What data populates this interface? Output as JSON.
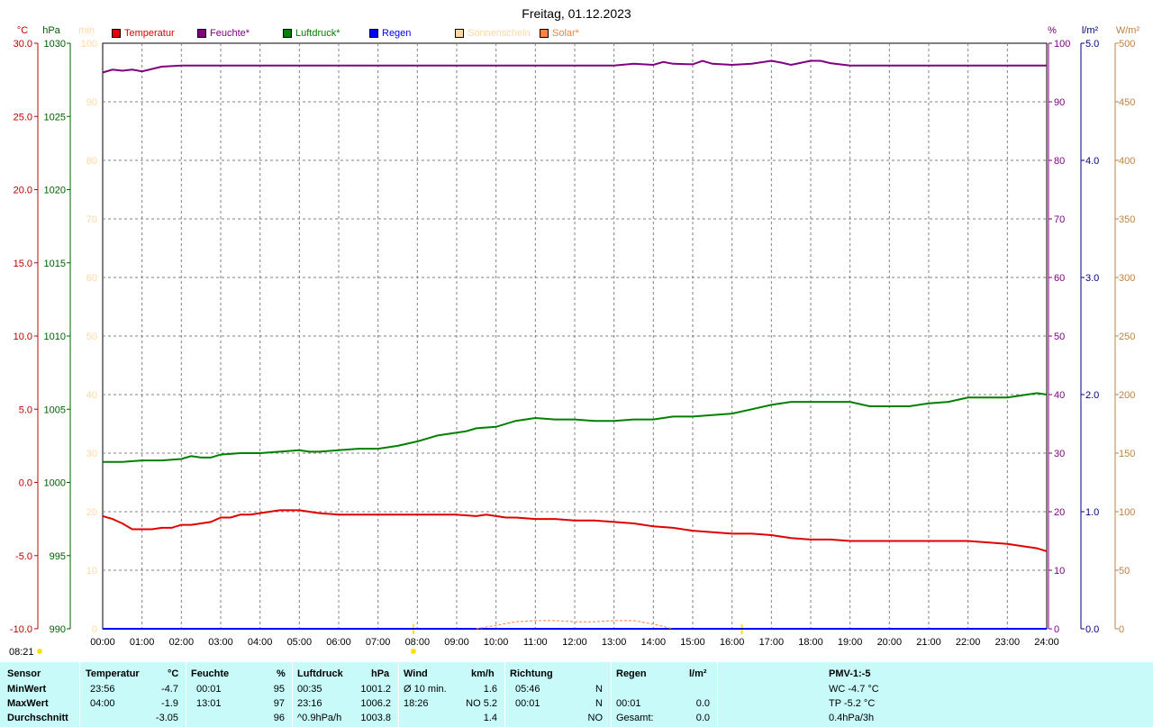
{
  "title": "Freitag, 01.12.2023",
  "axis_units": {
    "temp": "°C",
    "pressure": "hPa",
    "sunshine": "min",
    "humidity": "%",
    "rain": "l/m²",
    "solar": "W/m²"
  },
  "axis_ticks": {
    "temp": [
      "30.0",
      "25.0",
      "20.0",
      "15.0",
      "10.0",
      "5.0",
      "0.0",
      "-5.0",
      "-10.0"
    ],
    "pressure": [
      "1030",
      "1025",
      "1020",
      "1015",
      "1010",
      "1005",
      "1000",
      "995",
      "990"
    ],
    "sunshine": [
      "100",
      "90",
      "80",
      "70",
      "60",
      "50",
      "40",
      "30",
      "20",
      "10",
      "0"
    ],
    "humidity": [
      "100",
      "90",
      "80",
      "70",
      "60",
      "50",
      "40",
      "30",
      "20",
      "10",
      "0"
    ],
    "rain": [
      "5.0",
      "4.0",
      "3.0",
      "2.0",
      "1.0",
      "0.0"
    ],
    "solar": [
      "500",
      "450",
      "400",
      "350",
      "300",
      "250",
      "200",
      "150",
      "100",
      "50",
      "0"
    ],
    "time": [
      "00:00",
      "01:00",
      "02:00",
      "03:00",
      "04:00",
      "05:00",
      "06:00",
      "07:00",
      "08:00",
      "09:00",
      "10:00",
      "11:00",
      "12:00",
      "13:00",
      "14:00",
      "15:00",
      "16:00",
      "17:00",
      "18:00",
      "19:00",
      "20:00",
      "21:00",
      "22:00",
      "23:00",
      "24:00"
    ]
  },
  "legend": [
    {
      "label": "Temperatur",
      "color": "#e00000",
      "text_color": "#e00000"
    },
    {
      "label": "Feuchte*",
      "color": "#800080",
      "text_color": "#800080"
    },
    {
      "label": "Luftdruck*",
      "color": "#008000",
      "text_color": "#008000"
    },
    {
      "label": "Regen",
      "color": "#0000ff",
      "text_color": "#0000ff"
    },
    {
      "label": "Sonnenschein",
      "color": "#ffd8a0",
      "text_color": "#ffd8a0"
    },
    {
      "label": "Solar*",
      "color": "#ff8040",
      "text_color": "#ff8040"
    }
  ],
  "colors": {
    "temp_axis": "#c00000",
    "pressure_axis": "#006000",
    "sunshine_axis": "#ffd8a0",
    "humidity_axis": "#800080",
    "rain_axis": "#000080",
    "solar_axis": "#c08040",
    "grid": "#808080",
    "table_bg": "#c8fafa"
  },
  "time_left_label": "08:21",
  "chart_data": {
    "type": "line",
    "title": "Freitag, 01.12.2023",
    "x_range_hours": [
      0,
      24
    ],
    "series": [
      {
        "name": "Temperatur",
        "unit": "°C",
        "ylim": [
          -10,
          30
        ],
        "color": "#e00000",
        "x": [
          0,
          0.25,
          0.5,
          0.75,
          1,
          1.25,
          1.5,
          1.75,
          2,
          2.25,
          2.5,
          2.75,
          3,
          3.25,
          3.5,
          3.75,
          4,
          4.25,
          4.5,
          4.75,
          5,
          5.25,
          5.5,
          6,
          7,
          8,
          9,
          9.5,
          9.75,
          10,
          10.25,
          10.5,
          11,
          11.5,
          12,
          12.25,
          12.5,
          13,
          13.5,
          14,
          14.5,
          15,
          15.5,
          16,
          16.5,
          17,
          17.5,
          18,
          18.5,
          19,
          19.5,
          20,
          21,
          22,
          22.5,
          23,
          23.5,
          23.75,
          24
        ],
        "y": [
          -2.3,
          -2.5,
          -2.8,
          -3.2,
          -3.2,
          -3.2,
          -3.1,
          -3.1,
          -2.9,
          -2.9,
          -2.8,
          -2.7,
          -2.4,
          -2.4,
          -2.2,
          -2.2,
          -2.1,
          -2.0,
          -1.9,
          -1.9,
          -1.9,
          -2.0,
          -2.1,
          -2.2,
          -2.2,
          -2.2,
          -2.2,
          -2.3,
          -2.2,
          -2.3,
          -2.4,
          -2.4,
          -2.5,
          -2.5,
          -2.6,
          -2.6,
          -2.6,
          -2.7,
          -2.8,
          -3.0,
          -3.1,
          -3.3,
          -3.4,
          -3.5,
          -3.5,
          -3.6,
          -3.8,
          -3.9,
          -3.9,
          -4.0,
          -4.0,
          -4.0,
          -4.0,
          -4.0,
          -4.1,
          -4.2,
          -4.4,
          -4.5,
          -4.7
        ]
      },
      {
        "name": "Feuchte*",
        "unit": "%",
        "ylim": [
          0,
          100
        ],
        "color": "#800080",
        "x": [
          0,
          0.25,
          0.5,
          0.75,
          1,
          1.25,
          1.5,
          2,
          3,
          4,
          5,
          6,
          7,
          8,
          9,
          10,
          11,
          12,
          13,
          13.5,
          14,
          14.25,
          14.5,
          15,
          15.25,
          15.5,
          16,
          16.5,
          17,
          17.25,
          17.5,
          18,
          18.25,
          18.5,
          19,
          19.5,
          20,
          21,
          22,
          23,
          24
        ],
        "y": [
          95,
          95.5,
          95.3,
          95.5,
          95.2,
          95.6,
          96,
          96.2,
          96.2,
          96.2,
          96.2,
          96.2,
          96.2,
          96.2,
          96.2,
          96.2,
          96.2,
          96.2,
          96.2,
          96.5,
          96.3,
          96.8,
          96.5,
          96.4,
          97,
          96.5,
          96.3,
          96.5,
          97,
          96.7,
          96.3,
          97,
          97,
          96.6,
          96.2,
          96.2,
          96.2,
          96.2,
          96.2,
          96.2,
          96.2
        ]
      },
      {
        "name": "Luftdruck*",
        "unit": "hPa",
        "ylim": [
          990,
          1030
        ],
        "color": "#008000",
        "x": [
          0,
          0.5,
          1,
          1.5,
          2,
          2.25,
          2.5,
          2.75,
          3,
          3.5,
          4,
          4.5,
          5,
          5.25,
          5.5,
          6,
          6.5,
          7,
          7.5,
          8,
          8.25,
          8.5,
          9,
          9.25,
          9.5,
          10,
          10.5,
          11,
          11.5,
          12,
          12.5,
          13,
          13.5,
          14,
          14.5,
          15,
          15.5,
          16,
          16.5,
          17,
          17.5,
          18,
          18.5,
          19,
          19.5,
          20,
          20.5,
          21,
          21.5,
          22,
          22.5,
          23,
          23.5,
          23.75,
          24
        ],
        "y": [
          1001.4,
          1001.4,
          1001.5,
          1001.5,
          1001.6,
          1001.8,
          1001.7,
          1001.7,
          1001.9,
          1002.0,
          1002.0,
          1002.1,
          1002.2,
          1002.1,
          1002.1,
          1002.2,
          1002.3,
          1002.3,
          1002.5,
          1002.8,
          1003.0,
          1003.2,
          1003.4,
          1003.5,
          1003.7,
          1003.8,
          1004.2,
          1004.4,
          1004.3,
          1004.3,
          1004.2,
          1004.2,
          1004.3,
          1004.3,
          1004.5,
          1004.5,
          1004.6,
          1004.7,
          1005.0,
          1005.3,
          1005.5,
          1005.5,
          1005.5,
          1005.5,
          1005.2,
          1005.2,
          1005.2,
          1005.4,
          1005.5,
          1005.8,
          1005.8,
          1005.8,
          1006.0,
          1006.1,
          1006.0
        ]
      },
      {
        "name": "Regen",
        "unit": "l/m²",
        "ylim": [
          0,
          5
        ],
        "color": "#0000ff",
        "x": [
          0,
          24
        ],
        "y": [
          0,
          0
        ]
      },
      {
        "name": "Solar*",
        "unit": "W/m²",
        "ylim": [
          0,
          500
        ],
        "color": "#ff8040",
        "x": [
          9.5,
          10,
          10.5,
          11,
          11.5,
          12,
          12.5,
          13,
          13.5,
          14,
          14.5
        ],
        "y": [
          0,
          3,
          6,
          7,
          7,
          6,
          6,
          7,
          7,
          4,
          0
        ]
      }
    ],
    "markers_hours": [
      7.9,
      16.25
    ]
  },
  "table": {
    "headers": {
      "sensor": "Sensor",
      "temperatur": "Temperatur",
      "temp_unit": "°C",
      "feuchte": "Feuchte",
      "feuchte_unit": "%",
      "luftdruck": "Luftdruck",
      "luftdruck_unit": "hPa",
      "wind": "Wind",
      "wind_unit": "km/h",
      "richtung": "Richtung",
      "regen": "Regen",
      "regen_unit": "l/m²",
      "pmv": "PMV-1:-5"
    },
    "rows": [
      {
        "label": "MinWert",
        "temp_time": "23:56",
        "temp_val": "-4.7",
        "feuchte_time": "00:01",
        "feuchte_val": "95",
        "druck_time": "00:35",
        "druck_val": "1001.2",
        "wind_text": "Ø 10 min.",
        "wind_val": "1.6",
        "richtung_time": "05:46",
        "richtung_val": "N",
        "regen_time": "",
        "regen_val": "",
        "extra": "WC -4.7 °C"
      },
      {
        "label": "MaxWert",
        "temp_time": "04:00",
        "temp_val": "-1.9",
        "feuchte_time": "13:01",
        "feuchte_val": "97",
        "druck_time": "23:16",
        "druck_val": "1006.2",
        "wind_text": "18:26",
        "wind_val": "NO 5.2",
        "richtung_time": "00:01",
        "richtung_val": "N",
        "regen_time": "00:01",
        "regen_val": "0.0",
        "extra": "TP -5.2 °C"
      },
      {
        "label": "Durchschnitt",
        "temp_time": "",
        "temp_val": "-3.05",
        "feuchte_time": "",
        "feuchte_val": "96",
        "druck_time": "^0.9hPa/h",
        "druck_val": "1003.8",
        "wind_text": "",
        "wind_val": "1.4",
        "richtung_time": "",
        "richtung_val": "NO",
        "regen_time": "Gesamt:",
        "regen_val": "0.0",
        "extra": "0.4hPa/3h"
      }
    ]
  }
}
